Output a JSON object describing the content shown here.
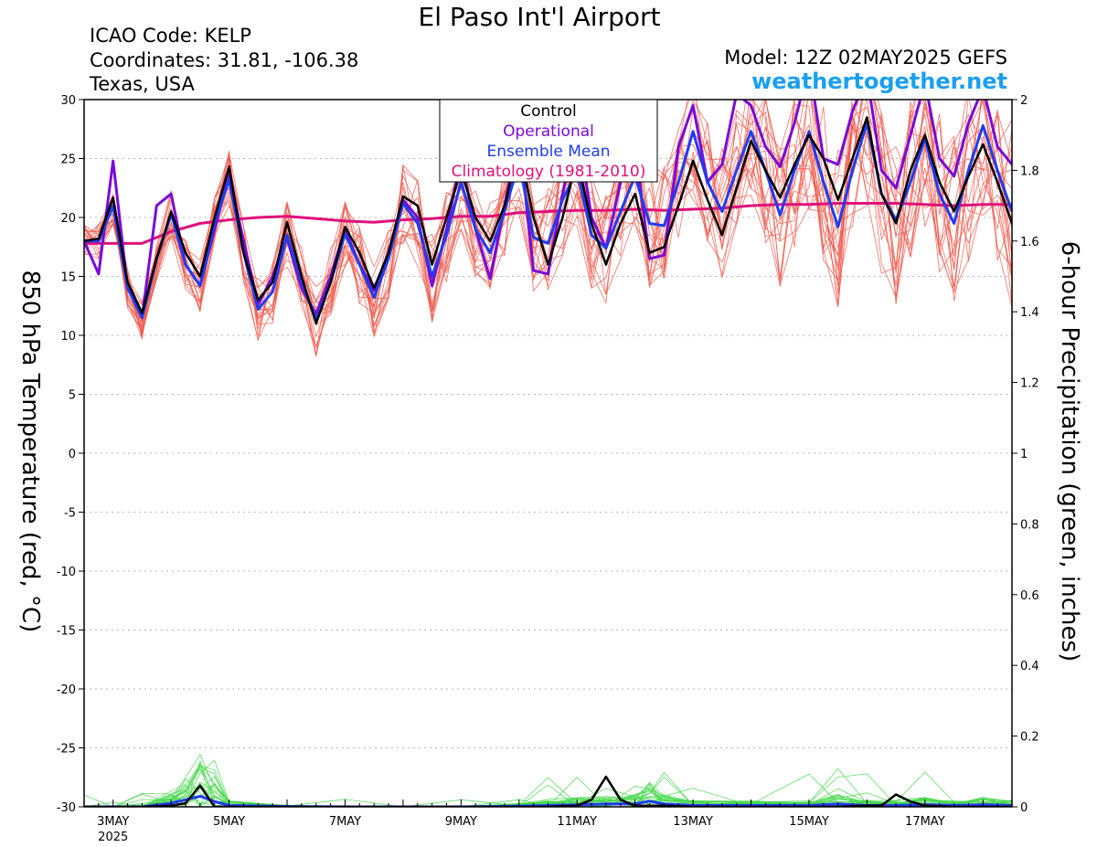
{
  "header": {
    "title": "El Paso Int'l Airport",
    "icao": "ICAO Code: KELP",
    "coordinates": "Coordinates: 31.81, -106.38",
    "region": "Texas, USA",
    "model": "Model: 12Z 02MAY2025 GEFS",
    "site": "weathertogether.net"
  },
  "colors": {
    "members": "#f05a4e",
    "precip_members": "#44d84a",
    "control": "#000000",
    "operational": "#7a0ad8",
    "ensemble_mean": "#1f3cf0",
    "climatology": "#e0107a",
    "site": "#1a9ff0"
  },
  "chart_data": {
    "type": "line",
    "xlabel": "",
    "ylabel": "850 hPa Temperature (red, °C)",
    "y2label": "6-hour Precipitation (green, inches)",
    "xlim": [
      2.5,
      18.5
    ],
    "ylim": [
      -30,
      30
    ],
    "y2lim": [
      0,
      2
    ],
    "yticks": [
      30,
      25,
      20,
      15,
      10,
      5,
      0,
      -5,
      -10,
      -15,
      -20,
      -25,
      -30
    ],
    "y2ticks": [
      2,
      1.8,
      1.6,
      1.4,
      1.2,
      1,
      0.8,
      0.6,
      0.4,
      0.2,
      0
    ],
    "xticks": [
      {
        "x": 3,
        "label": "3MAY",
        "sub": "2025"
      },
      {
        "x": 5,
        "label": "5MAY",
        "sub": ""
      },
      {
        "x": 7,
        "label": "7MAY",
        "sub": ""
      },
      {
        "x": 9,
        "label": "9MAY",
        "sub": ""
      },
      {
        "x": 11,
        "label": "11MAY",
        "sub": ""
      },
      {
        "x": 13,
        "label": "13MAY",
        "sub": ""
      },
      {
        "x": 15,
        "label": "15MAY",
        "sub": ""
      },
      {
        "x": 17,
        "label": "17MAY",
        "sub": ""
      }
    ],
    "legend": [
      "Control",
      "Operational",
      "Ensemble Mean",
      "Climatology (1981-2010)"
    ],
    "legend_placement": "top-center",
    "grid": "horizontal-dotted",
    "series": [
      {
        "name": "Control",
        "x": [
          2.5,
          2.75,
          3.0,
          3.25,
          3.5,
          3.75,
          4.0,
          4.25,
          4.5,
          4.75,
          5.0,
          5.25,
          5.5,
          5.75,
          6.0,
          6.25,
          6.5,
          6.75,
          7.0,
          7.25,
          7.5,
          7.75,
          8.0,
          8.25,
          8.5,
          8.75,
          9.0,
          9.25,
          9.5,
          9.75,
          10.0,
          10.25,
          10.5,
          10.75,
          11.0,
          11.25,
          11.5,
          11.75,
          12.0,
          12.25,
          12.5,
          12.75,
          13.0,
          13.25,
          13.5,
          13.75,
          14.0,
          14.25,
          14.5,
          14.75,
          15.0,
          15.25,
          15.5,
          15.75,
          16.0,
          16.25,
          16.5,
          16.75,
          17.0,
          17.25,
          17.5,
          17.75,
          18.0,
          18.25,
          18.5
        ],
        "values": [
          18,
          18.2,
          21.7,
          14.5,
          11.9,
          16.5,
          20.5,
          17,
          15,
          20,
          24.3,
          17,
          13,
          14.5,
          19.6,
          15,
          11,
          14.5,
          19.2,
          17,
          14,
          17,
          21.8,
          21,
          16,
          20,
          24,
          20,
          18,
          21,
          26,
          20,
          16,
          20,
          25,
          19.5,
          16,
          19.5,
          22,
          17,
          17.5,
          21,
          24.8,
          21.5,
          18.5,
          22.5,
          26.5,
          24,
          21.7,
          24.5,
          27,
          25,
          21.5,
          25,
          28.5,
          22,
          19.5,
          24,
          27,
          23,
          20.5,
          23.5,
          26.2,
          23,
          19.5
        ]
      },
      {
        "name": "Operational",
        "x": [
          2.5,
          2.75,
          3.0,
          3.25,
          3.5,
          3.75,
          4.0,
          4.25,
          4.5,
          4.75,
          5.0,
          5.25,
          5.5,
          5.75,
          6.0,
          6.25,
          6.5,
          6.75,
          7.0,
          7.25,
          7.5,
          7.75,
          8.0,
          8.25,
          8.5,
          8.75,
          9.0,
          9.25,
          9.5,
          9.75,
          10.0,
          10.25,
          10.5,
          10.75,
          11.0,
          11.25,
          11.5,
          11.75,
          12.0,
          12.25,
          12.5,
          12.75,
          13.0,
          13.25,
          13.5,
          13.75,
          14.0,
          14.25,
          14.5,
          14.75,
          15.0,
          15.25,
          15.5,
          15.75,
          16.0,
          16.25,
          16.5,
          16.75,
          17.0,
          17.25,
          17.5,
          17.75,
          18.0,
          18.25,
          18.5
        ],
        "values": [
          18,
          15.2,
          24.8,
          14,
          11.5,
          21,
          22,
          16,
          14.2,
          19,
          23.7,
          18,
          12.6,
          15,
          18.3,
          14,
          11.8,
          15,
          19,
          16,
          13.8,
          17,
          21.5,
          20,
          14.2,
          19,
          25,
          19,
          14.8,
          21,
          27,
          15.5,
          15.2,
          22,
          28,
          20,
          17.4,
          23,
          26,
          16.5,
          16.8,
          26,
          29.5,
          23,
          24.5,
          30.5,
          29.5,
          26,
          24.3,
          28,
          33,
          25,
          24.5,
          29,
          32,
          24,
          22.5,
          27,
          31.5,
          25,
          23.5,
          28,
          31,
          26,
          24.5
        ]
      },
      {
        "name": "Ensemble Mean",
        "x": [
          2.5,
          2.75,
          3.0,
          3.25,
          3.5,
          3.75,
          4.0,
          4.25,
          4.5,
          4.75,
          5.0,
          5.25,
          5.5,
          5.75,
          6.0,
          6.25,
          6.5,
          6.75,
          7.0,
          7.25,
          7.5,
          7.75,
          8.0,
          8.25,
          8.5,
          8.75,
          9.0,
          9.25,
          9.5,
          9.75,
          10.0,
          10.25,
          10.5,
          10.75,
          11.0,
          11.25,
          11.5,
          11.75,
          12.0,
          12.25,
          12.5,
          12.75,
          13.0,
          13.25,
          13.5,
          13.75,
          14.0,
          14.25,
          14.5,
          14.75,
          15.0,
          15.25,
          15.5,
          15.75,
          16.0,
          16.25,
          16.5,
          16.75,
          17.0,
          17.25,
          17.5,
          17.75,
          18.0,
          18.25,
          18.5
        ],
        "values": [
          18,
          18,
          21,
          14,
          11.5,
          16.5,
          20.3,
          16,
          14.2,
          19.5,
          23.2,
          17,
          12.2,
          13.7,
          18.5,
          14.5,
          11.3,
          14.5,
          18.6,
          16,
          13.2,
          16.5,
          21.2,
          19.5,
          15,
          18.5,
          23,
          19,
          17,
          20.5,
          24.7,
          18.3,
          17.8,
          21.5,
          24,
          18.5,
          17.4,
          20.5,
          23.5,
          19.5,
          19.3,
          23,
          27.3,
          23,
          20.5,
          24,
          27.3,
          24,
          20.2,
          24,
          27.3,
          23,
          19.2,
          24,
          28,
          22,
          19.8,
          23,
          26.7,
          22,
          19.5,
          24,
          27.8,
          24,
          20.5
        ]
      },
      {
        "name": "Climatology (1981-2010)",
        "x": [
          2.5,
          3.0,
          3.5,
          4.0,
          4.5,
          5.0,
          5.5,
          6.0,
          6.5,
          7.0,
          7.5,
          8.0,
          8.5,
          9.0,
          9.5,
          10.0,
          10.5,
          11.0,
          11.5,
          12.0,
          12.5,
          13.0,
          13.5,
          14.0,
          14.5,
          15.0,
          15.5,
          16.0,
          16.5,
          17.0,
          17.5,
          18.0,
          18.5
        ],
        "values": [
          17.8,
          17.8,
          17.8,
          18.8,
          19.5,
          19.8,
          20,
          20.1,
          19.9,
          19.7,
          19.6,
          19.8,
          19.9,
          20.1,
          20.1,
          20.4,
          20.5,
          20.6,
          20.6,
          20.7,
          20.6,
          20.7,
          20.8,
          21,
          21.1,
          21.1,
          21.2,
          21.2,
          21.2,
          21.1,
          21.0,
          21.1,
          21.1
        ]
      }
    ],
    "precip_series": [
      {
        "name": "Control",
        "x": [
          2.5,
          3.0,
          3.5,
          4.0,
          4.25,
          4.5,
          4.75,
          5.0,
          6.0,
          7.0,
          8.0,
          9.0,
          10.0,
          10.5,
          11.0,
          11.25,
          11.5,
          11.75,
          12.0,
          12.5,
          13.0,
          14.0,
          15.0,
          15.5,
          16.0,
          16.25,
          16.5,
          16.75,
          17.0,
          17.5,
          18.0,
          18.5
        ],
        "values": [
          0,
          0,
          0,
          0.003,
          0.01,
          0.06,
          0,
          0,
          0,
          0,
          0,
          0,
          0,
          0,
          0.003,
          0.02,
          0.085,
          0.02,
          0.003,
          0.003,
          0,
          0,
          0,
          0,
          0.003,
          0.003,
          0.035,
          0.015,
          0.003,
          0,
          0,
          0
        ]
      },
      {
        "name": "Ensemble Mean",
        "x": [
          2.5,
          3.0,
          3.5,
          4.0,
          4.25,
          4.5,
          4.75,
          5.0,
          6.0,
          7.0,
          8.0,
          9.0,
          10.0,
          10.5,
          11.0,
          11.5,
          12.0,
          12.25,
          12.5,
          13.0,
          14.0,
          15.0,
          15.5,
          16.0,
          16.5,
          17.0,
          17.5,
          18.0,
          18.5
        ],
        "values": [
          0,
          0,
          0,
          0.01,
          0.02,
          0.03,
          0.015,
          0.004,
          0.001,
          0,
          0,
          0,
          0.002,
          0.004,
          0.006,
          0.008,
          0.008,
          0.016,
          0.008,
          0.004,
          0.004,
          0.004,
          0.008,
          0.004,
          0.004,
          0.006,
          0.004,
          0.006,
          0.004
        ]
      }
    ]
  }
}
